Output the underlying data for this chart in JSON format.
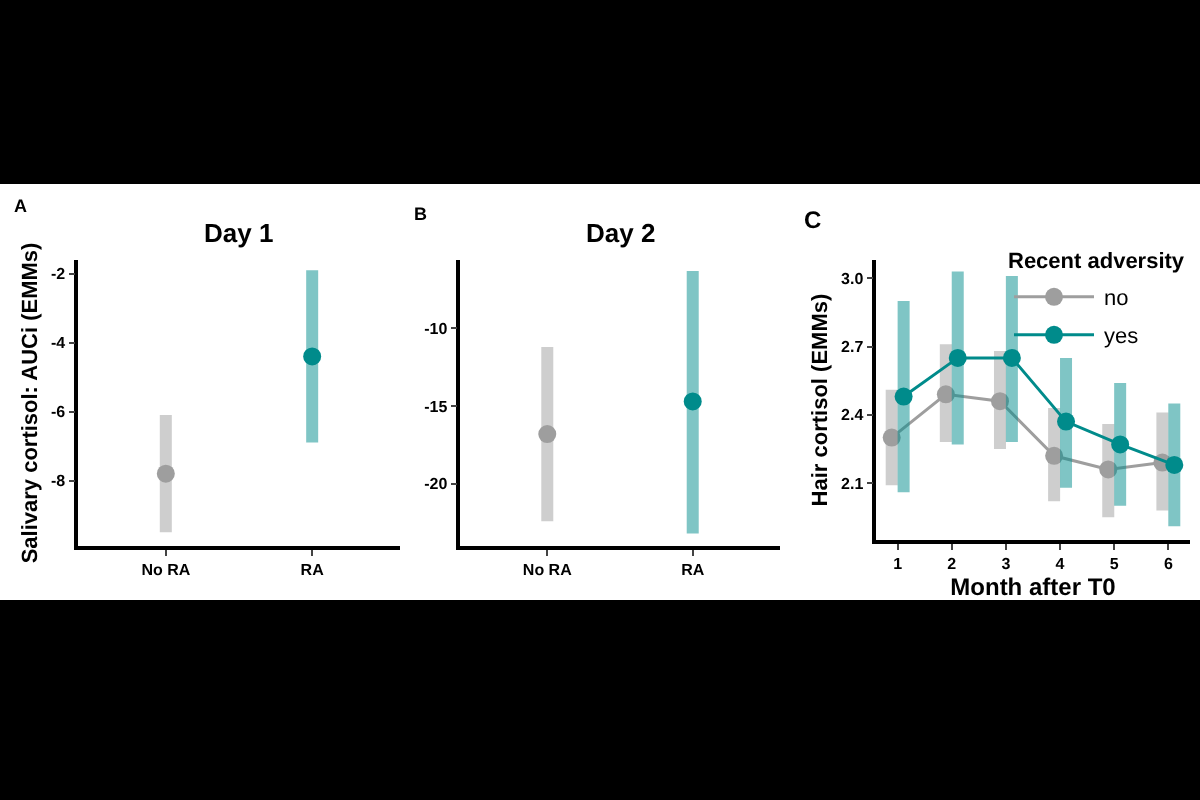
{
  "chart_data": [
    {
      "type": "scatter",
      "title": "Day 1",
      "ylabel": "Salivary cortisol: AUCi (EMMs)",
      "annotations": [
        "A"
      ],
      "categories": [
        "No RA",
        "RA"
      ],
      "values": [
        -7.8,
        -4.4
      ],
      "colors": [
        "#9e9e9e",
        "#008b8b"
      ],
      "errors": [
        [
          -9.5,
          -6.1
        ],
        [
          -6.9,
          -1.9
        ]
      ],
      "ylim": [
        -9.9,
        -1.6
      ],
      "yticks": [
        -8,
        -6,
        -4,
        -2
      ],
      "marker": "circle",
      "grid": false
    },
    {
      "type": "scatter",
      "title": "Day 2",
      "annotations": [
        "B"
      ],
      "categories": [
        "No RA",
        "RA"
      ],
      "values": [
        -16.8,
        -14.7
      ],
      "colors": [
        "#9e9e9e",
        "#008b8b"
      ],
      "errors": [
        [
          -22.4,
          -11.2
        ],
        [
          -23.2,
          -6.3
        ]
      ],
      "ylim": [
        -24,
        -5.6
      ],
      "yticks": [
        -20,
        -15,
        -10
      ],
      "marker": "circle",
      "grid": false
    },
    {
      "type": "line",
      "xlabel": "Month after T0",
      "ylabel": "Hair cortisol (EMMs)",
      "legend_title": "Recent adversity",
      "annotations": [
        "C"
      ],
      "series": [
        {
          "name": "no",
          "color": "#9e9e9e",
          "x": [
            0.89,
            1.89,
            2.89,
            3.89,
            4.89,
            5.89
          ],
          "values": [
            2.3,
            2.49,
            2.46,
            2.22,
            2.16,
            2.19
          ],
          "errors": [
            [
              2.09,
              2.51
            ],
            [
              2.28,
              2.71
            ],
            [
              2.25,
              2.68
            ],
            [
              2.02,
              2.43
            ],
            [
              1.95,
              2.36
            ],
            [
              1.98,
              2.41
            ]
          ]
        },
        {
          "name": "yes",
          "color": "#008b8b",
          "x": [
            1.11,
            2.11,
            3.11,
            4.11,
            5.11,
            6.11
          ],
          "values": [
            2.48,
            2.65,
            2.65,
            2.37,
            2.27,
            2.18
          ],
          "errors": [
            [
              2.06,
              2.9
            ],
            [
              2.27,
              3.03
            ],
            [
              2.28,
              3.01
            ],
            [
              2.08,
              2.65
            ],
            [
              2.0,
              2.54
            ],
            [
              1.91,
              2.45
            ]
          ]
        }
      ],
      "xlim": [
        0.6,
        6.4
      ],
      "xticks": [
        1,
        2,
        3,
        4,
        5,
        6
      ],
      "ylim": [
        1.85,
        3.08
      ],
      "yticks": [
        2.1,
        2.4,
        2.7,
        {
          "value": 3,
          "label": "3.0"
        }
      ],
      "marker": "circle",
      "line_style": "solid",
      "grid": false,
      "legend": "top right"
    }
  ]
}
